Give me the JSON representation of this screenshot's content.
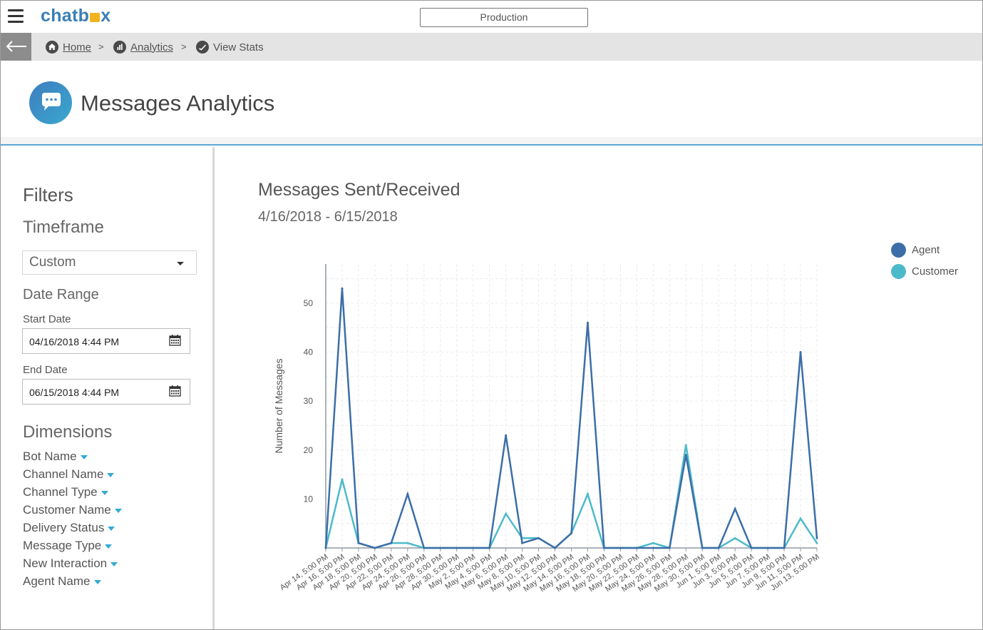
{
  "app": {
    "logo_pre": "chatb",
    "logo_post": "x",
    "environment": "Production"
  },
  "breadcrumb": {
    "home": "Home",
    "analytics": "Analytics",
    "current": "View Stats",
    "separator": ">"
  },
  "header": {
    "title": "Messages Analytics"
  },
  "filters": {
    "heading": "Filters",
    "timeframe_heading": "Timeframe",
    "timeframe_value": "Custom",
    "date_range_heading": "Date Range",
    "start_label": "Start Date",
    "start_value": "04/16/2018 4:44 PM",
    "end_label": "End Date",
    "end_value": "06/15/2018 4:44 PM",
    "dimensions_heading": "Dimensions",
    "dimensions": [
      "Bot Name",
      "Channel Name",
      "Channel Type",
      "Customer Name",
      "Delivery Status",
      "Message Type",
      "New Interaction",
      "Agent Name"
    ]
  },
  "colors": {
    "agent": "#3c6ea8",
    "customer": "#4cbacb",
    "accent": "#35a9d4"
  },
  "chart_data": {
    "type": "line",
    "title": "Messages Sent/Received",
    "subtitle": "4/16/2018 - 6/15/2018",
    "ylabel": "Number of Messages",
    "xlabel": "",
    "ylim": [
      0,
      58
    ],
    "yticks": [
      10,
      20,
      30,
      40,
      50
    ],
    "grid": true,
    "legend_position": "top-right",
    "categories": [
      "Apr 14, 5:00 PM",
      "Apr 16, 5:00 PM",
      "Apr 18, 5:00 PM",
      "Apr 20, 5:00 PM",
      "Apr 22, 5:00 PM",
      "Apr 24, 5:00 PM",
      "Apr 26, 5:00 PM",
      "Apr 28, 5:00 PM",
      "Apr 30, 5:00 PM",
      "May 2, 5:00 PM",
      "May 4, 5:00 PM",
      "May 6, 5:00 PM",
      "May 8, 5:00 PM",
      "May 10, 5:00 PM",
      "May 12, 5:00 PM",
      "May 14, 5:00 PM",
      "May 16, 5:00 PM",
      "May 18, 5:00 PM",
      "May 20, 5:00 PM",
      "May 22, 5:00 PM",
      "May 24, 5:00 PM",
      "May 26, 5:00 PM",
      "May 28, 5:00 PM",
      "May 30, 5:00 PM",
      "Jun 1, 5:00 PM",
      "Jun 3, 5:00 PM",
      "Jun 5, 5:00 PM",
      "Jun 7, 5:00 PM",
      "Jun 9, 5:00 PM",
      "Jun 11, 5:00 PM",
      "Jun 13, 5:00 PM"
    ],
    "series": [
      {
        "name": "Agent",
        "values": [
          0,
          53,
          1,
          0,
          1,
          11,
          0,
          0,
          0,
          0,
          0,
          23,
          1,
          2,
          0,
          3,
          46,
          0,
          0,
          0,
          0,
          0,
          19,
          0,
          0,
          8,
          0,
          0,
          0,
          40,
          2
        ]
      },
      {
        "name": "Customer",
        "values": [
          0,
          14,
          1,
          0,
          1,
          1,
          0,
          0,
          0,
          0,
          0,
          7,
          2,
          2,
          0,
          3,
          11,
          0,
          0,
          0,
          1,
          0,
          21,
          0,
          0,
          2,
          0,
          0,
          0,
          6,
          1
        ]
      }
    ]
  }
}
